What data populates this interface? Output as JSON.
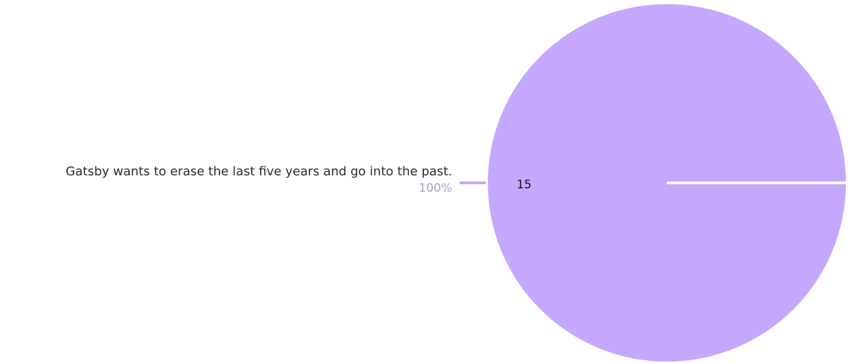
{
  "chart_data": {
    "type": "pie",
    "slices": [
      {
        "label": "Gatsby wants to erase the last five years and go into the past.",
        "value": 15,
        "percent_label": "100%",
        "value_label": "15",
        "color": "#c5a8fe"
      }
    ]
  },
  "colors": {
    "background": "#ffffff",
    "label_text": "#2b2b2b",
    "percent_text": "#a9a2bd",
    "value_text": "#111111",
    "separator": "#ffffff"
  }
}
